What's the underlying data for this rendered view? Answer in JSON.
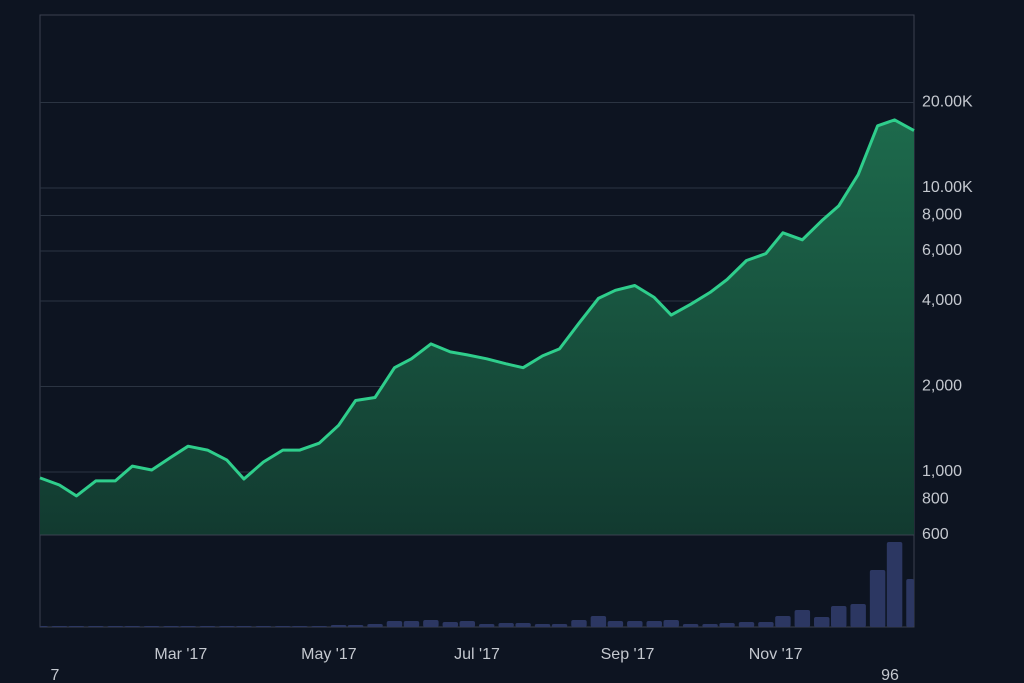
{
  "chart_data": {
    "type": "area",
    "log_scale": true,
    "grid": true,
    "color": "#2fce8c",
    "volume_color": "#2c3762",
    "xlim": [
      1,
      361
    ],
    "xticks": [
      {
        "value": 59,
        "label": "Mar '17"
      },
      {
        "value": 120,
        "label": "May '17"
      },
      {
        "value": 181,
        "label": "Jul '17"
      },
      {
        "value": 243,
        "label": "Sep '17"
      },
      {
        "value": 304,
        "label": "Nov '17"
      }
    ],
    "ylim": [
      600,
      40000
    ],
    "yticks": [
      {
        "value": 600,
        "label": "600"
      },
      {
        "value": 800,
        "label": "800"
      },
      {
        "value": 1000,
        "label": "1,000"
      },
      {
        "value": 2000,
        "label": "2,000"
      },
      {
        "value": 4000,
        "label": "4,000"
      },
      {
        "value": 6000,
        "label": "6,000"
      },
      {
        "value": 8000,
        "label": "8,000"
      },
      {
        "value": 10000,
        "label": "10.00K"
      },
      {
        "value": 20000,
        "label": "20.00K"
      }
    ],
    "volume_ylim": [
      0,
      92
    ],
    "edge_labels": [
      "7",
      "96"
    ],
    "x": [
      1,
      9,
      16,
      24,
      32,
      39,
      47,
      55,
      62,
      70,
      78,
      85,
      93,
      101,
      108,
      116,
      124,
      131,
      139,
      147,
      154,
      162,
      170,
      177,
      185,
      193,
      200,
      208,
      215,
      223,
      231,
      238,
      246,
      254,
      261,
      269,
      277,
      284,
      292,
      300,
      307,
      315,
      323,
      330,
      338,
      346,
      353,
      361
    ],
    "values": [
      953,
      900,
      824,
      930,
      930,
      1049,
      1016,
      1128,
      1233,
      1194,
      1101,
      945,
      1084,
      1194,
      1194,
      1263,
      1460,
      1786,
      1830,
      2329,
      2503,
      2824,
      2647,
      2585,
      2503,
      2405,
      2329,
      2563,
      2713,
      3342,
      4087,
      4362,
      4537,
      4120,
      3567,
      3893,
      4290,
      4763,
      5553,
      5874,
      6955,
      6569,
      7663,
      8651,
      11150,
      16560,
      17370,
      15930
    ],
    "volume": [
      1,
      1,
      1,
      1,
      1,
      1,
      1,
      1,
      1,
      1,
      1,
      1,
      1,
      1,
      1,
      1,
      2,
      2,
      3,
      6,
      6,
      7,
      5,
      6,
      3,
      4,
      4,
      3,
      3,
      7,
      11,
      6,
      6,
      6,
      7,
      3,
      3,
      4,
      5,
      5,
      11,
      17,
      10,
      21,
      23,
      57,
      85,
      48
    ]
  }
}
